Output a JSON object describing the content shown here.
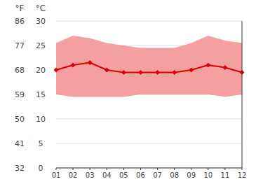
{
  "chart_data": {
    "type": "line",
    "x": [
      1,
      2,
      3,
      4,
      5,
      6,
      7,
      8,
      9,
      10,
      11,
      12
    ],
    "xlim": [
      1,
      12
    ],
    "xticks": [
      {
        "value": 1,
        "label": "01"
      },
      {
        "value": 2,
        "label": "02"
      },
      {
        "value": 3,
        "label": "03"
      },
      {
        "value": 4,
        "label": "04"
      },
      {
        "value": 5,
        "label": "05"
      },
      {
        "value": 6,
        "label": "06"
      },
      {
        "value": 7,
        "label": "07"
      },
      {
        "value": 8,
        "label": "08"
      },
      {
        "value": 9,
        "label": "09"
      },
      {
        "value": 10,
        "label": "10"
      },
      {
        "value": 11,
        "label": "11"
      },
      {
        "value": 12,
        "label": "12"
      }
    ],
    "ylabel": "°C",
    "ylim": [
      0,
      30
    ],
    "yticks": [
      0,
      5,
      10,
      15,
      20,
      25,
      30
    ],
    "y2label": "°F",
    "y2lim": [
      32,
      86
    ],
    "y2ticks": [
      32,
      41,
      50,
      59,
      68,
      77,
      86
    ],
    "grid": true,
    "series": [
      {
        "type": "range",
        "color": "#f5a0a0",
        "low": [
          15.0,
          14.5,
          14.5,
          14.5,
          14.5,
          15.0,
          15.0,
          15.0,
          15.0,
          15.0,
          14.5,
          15.0
        ],
        "high": [
          25.5,
          27.0,
          26.5,
          25.5,
          25.0,
          24.5,
          24.5,
          24.5,
          25.5,
          27.0,
          26.0,
          25.5
        ]
      },
      {
        "type": "line",
        "color": "#dd0000",
        "marker": "diamond",
        "values": [
          20.0,
          21.0,
          21.5,
          20.0,
          19.5,
          19.5,
          19.5,
          19.5,
          20.0,
          21.0,
          20.5,
          19.5
        ]
      }
    ]
  }
}
